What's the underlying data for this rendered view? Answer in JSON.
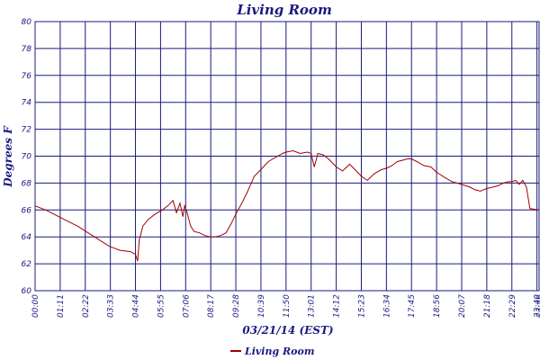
{
  "chart_data": {
    "type": "line",
    "title": "Living Room",
    "xlabel": "03/21/14 (EST)",
    "ylabel": "Degrees F",
    "ylim": [
      60,
      80
    ],
    "yticks": [
      60,
      62,
      64,
      66,
      68,
      70,
      72,
      74,
      76,
      78,
      80
    ],
    "x_tick_labels": [
      "00:00",
      "01:11",
      "02:22",
      "03:33",
      "04:44",
      "05:55",
      "07:06",
      "08:17",
      "09:28",
      "10:39",
      "11:50",
      "13:01",
      "14:12",
      "15:23",
      "16:34",
      "17:45",
      "18:56",
      "20:07",
      "21:18",
      "22:29",
      "23:40",
      "23:46"
    ],
    "grid": true,
    "legend_position": "bottom-center",
    "line_color": "#a00000",
    "series": [
      {
        "name": "Living Room",
        "x": [
          "00:00",
          "00:30",
          "01:00",
          "01:30",
          "02:00",
          "02:30",
          "03:00",
          "03:30",
          "04:00",
          "04:30",
          "04:44",
          "04:50",
          "04:55",
          "05:05",
          "05:20",
          "05:40",
          "06:00",
          "06:15",
          "06:30",
          "06:40",
          "06:50",
          "06:58",
          "07:03",
          "07:10",
          "07:20",
          "07:30",
          "07:45",
          "08:00",
          "08:17",
          "08:30",
          "08:45",
          "09:00",
          "09:15",
          "09:28",
          "09:45",
          "10:00",
          "10:20",
          "10:39",
          "11:00",
          "11:20",
          "11:40",
          "11:50",
          "12:10",
          "12:30",
          "12:50",
          "13:01",
          "13:10",
          "13:20",
          "13:35",
          "13:50",
          "14:05",
          "14:12",
          "14:30",
          "14:50",
          "15:05",
          "15:23",
          "15:40",
          "16:00",
          "16:20",
          "16:34",
          "16:50",
          "17:05",
          "17:20",
          "17:35",
          "17:45",
          "18:00",
          "18:20",
          "18:40",
          "18:56",
          "19:20",
          "19:40",
          "20:07",
          "20:30",
          "20:45",
          "21:00",
          "21:18",
          "21:35",
          "21:50",
          "22:05",
          "22:20",
          "22:29",
          "22:40",
          "22:50",
          "23:00",
          "23:10",
          "23:20",
          "23:46"
        ],
        "values": [
          66.3,
          66.0,
          65.6,
          65.2,
          64.8,
          64.3,
          63.8,
          63.3,
          63.0,
          62.9,
          62.7,
          62.2,
          63.8,
          64.8,
          65.3,
          65.7,
          66.0,
          66.3,
          66.7,
          65.8,
          66.5,
          65.5,
          66.3,
          65.8,
          64.8,
          64.4,
          64.3,
          64.1,
          64.0,
          64.0,
          64.1,
          64.3,
          65.0,
          65.7,
          66.5,
          67.3,
          68.5,
          69.0,
          69.6,
          69.9,
          70.2,
          70.3,
          70.4,
          70.2,
          70.3,
          70.2,
          69.2,
          70.2,
          70.1,
          69.8,
          69.4,
          69.2,
          68.9,
          69.4,
          69.0,
          68.5,
          68.2,
          68.7,
          69.0,
          69.1,
          69.3,
          69.6,
          69.7,
          69.8,
          69.8,
          69.6,
          69.3,
          69.2,
          68.8,
          68.4,
          68.1,
          67.9,
          67.7,
          67.5,
          67.4,
          67.6,
          67.7,
          67.8,
          68.0,
          68.1,
          68.1,
          68.2,
          67.9,
          68.2,
          67.7,
          66.1,
          66.0
        ]
      }
    ]
  }
}
